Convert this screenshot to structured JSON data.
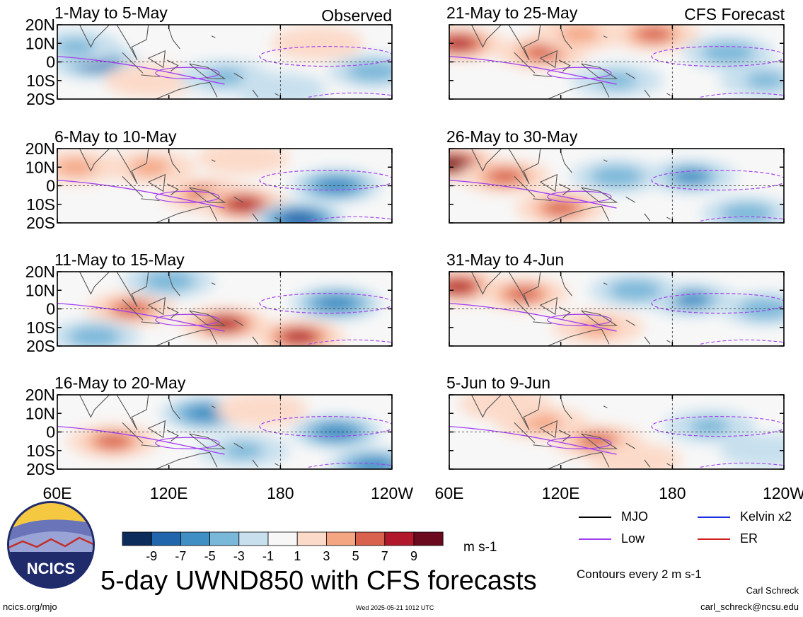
{
  "title": "5-day UWND850 with CFS forecasts",
  "units": "m s-1",
  "contours_note": "Contours every 2 m s-1",
  "author": "Carl Schreck",
  "email": "carl_schreck@ncsu.edu",
  "website": "ncics.org/mjo",
  "timestamp": "Wed 2025-05-21 1012 UTC",
  "logo_text": "NCICS",
  "header_left": "Observed",
  "header_right": "CFS Forecast",
  "lat_labels": [
    "20N",
    "10N",
    "0",
    "10S",
    "20S"
  ],
  "lon_labels": [
    "60E",
    "120E",
    "180",
    "120W"
  ],
  "legend": [
    {
      "label": "MJO",
      "color": "#000000"
    },
    {
      "label": "Kelvin x2",
      "color": "#1a2be0"
    },
    {
      "label": "Low",
      "color": "#a23ff0"
    },
    {
      "label": "ER",
      "color": "#d11f1f"
    }
  ],
  "chart_data": {
    "type": "heatmap",
    "variable": "UWND850",
    "colorbar": {
      "ticks": [
        "-9",
        "-7",
        "-5",
        "-3",
        "-1",
        "1",
        "3",
        "5",
        "7",
        "9"
      ],
      "colors": [
        "#0c2c5c",
        "#2166ac",
        "#3f8fc4",
        "#7ab8d9",
        "#c8e0ee",
        "#f7f7f7",
        "#fcdac9",
        "#f4a582",
        "#d8624e",
        "#b2182b",
        "#6b0a1f"
      ]
    },
    "panels": [
      {
        "label": "1-May to 5-May",
        "source": "Observed",
        "blobs": [
          {
            "lon": 80,
            "lat": 0,
            "v": -8
          },
          {
            "lon": 70,
            "lat": 8,
            "v": -4
          },
          {
            "lon": 110,
            "lat": -10,
            "v": 3
          },
          {
            "lon": 150,
            "lat": -8,
            "v": -4
          },
          {
            "lon": 200,
            "lat": 10,
            "v": 2
          },
          {
            "lon": 230,
            "lat": -5,
            "v": -3
          },
          {
            "lon": 180,
            "lat": -15,
            "v": -2
          }
        ]
      },
      {
        "label": "6-May to 10-May",
        "source": "Observed",
        "blobs": [
          {
            "lon": 140,
            "lat": -5,
            "v": 7
          },
          {
            "lon": 160,
            "lat": -10,
            "v": 8
          },
          {
            "lon": 110,
            "lat": 10,
            "v": 4
          },
          {
            "lon": 70,
            "lat": 10,
            "v": 4
          },
          {
            "lon": 210,
            "lat": 0,
            "v": -5
          },
          {
            "lon": 190,
            "lat": -18,
            "v": -7
          },
          {
            "lon": 160,
            "lat": 15,
            "v": 3
          }
        ]
      },
      {
        "label": "11-May to 15-May",
        "source": "Observed",
        "blobs": [
          {
            "lon": 100,
            "lat": 0,
            "v": 6
          },
          {
            "lon": 150,
            "lat": -8,
            "v": 8
          },
          {
            "lon": 190,
            "lat": -15,
            "v": 9
          },
          {
            "lon": 80,
            "lat": -15,
            "v": -3
          },
          {
            "lon": 210,
            "lat": 3,
            "v": -5
          },
          {
            "lon": 120,
            "lat": 15,
            "v": -3
          }
        ]
      },
      {
        "label": "16-May to 20-May",
        "source": "Observed",
        "blobs": [
          {
            "lon": 90,
            "lat": -5,
            "v": 6
          },
          {
            "lon": 140,
            "lat": 10,
            "v": -5
          },
          {
            "lon": 160,
            "lat": -10,
            "v": -4
          },
          {
            "lon": 210,
            "lat": 0,
            "v": -5
          },
          {
            "lon": 170,
            "lat": 12,
            "v": 3
          },
          {
            "lon": 230,
            "lat": -18,
            "v": -5
          }
        ]
      },
      {
        "label": "21-May to 25-May",
        "source": "CFS Forecast",
        "blobs": [
          {
            "lon": 65,
            "lat": 10,
            "v": 9
          },
          {
            "lon": 110,
            "lat": 5,
            "v": 6
          },
          {
            "lon": 170,
            "lat": 15,
            "v": 7
          },
          {
            "lon": 150,
            "lat": -10,
            "v": -4
          },
          {
            "lon": 210,
            "lat": 5,
            "v": -3
          },
          {
            "lon": 230,
            "lat": -10,
            "v": -4
          },
          {
            "lon": 130,
            "lat": 15,
            "v": 4
          }
        ]
      },
      {
        "label": "26-May to 30-May",
        "source": "CFS Forecast",
        "blobs": [
          {
            "lon": 62,
            "lat": 12,
            "v": 10
          },
          {
            "lon": 90,
            "lat": 5,
            "v": 6
          },
          {
            "lon": 120,
            "lat": -12,
            "v": 6
          },
          {
            "lon": 190,
            "lat": 5,
            "v": -6
          },
          {
            "lon": 150,
            "lat": 5,
            "v": -3
          },
          {
            "lon": 220,
            "lat": -15,
            "v": -3
          }
        ]
      },
      {
        "label": "31-May to 4-Jun",
        "source": "CFS Forecast",
        "blobs": [
          {
            "lon": 65,
            "lat": 12,
            "v": 9
          },
          {
            "lon": 100,
            "lat": 8,
            "v": 6
          },
          {
            "lon": 140,
            "lat": -10,
            "v": 4
          },
          {
            "lon": 190,
            "lat": 5,
            "v": -6
          },
          {
            "lon": 160,
            "lat": 10,
            "v": -3
          },
          {
            "lon": 230,
            "lat": 0,
            "v": -3
          }
        ]
      },
      {
        "label": "5-Jun to 9-Jun",
        "source": "CFS Forecast",
        "blobs": [
          {
            "lon": 140,
            "lat": -5,
            "v": 7
          },
          {
            "lon": 110,
            "lat": 5,
            "v": 5
          },
          {
            "lon": 200,
            "lat": 3,
            "v": -4
          },
          {
            "lon": 160,
            "lat": -15,
            "v": 3
          },
          {
            "lon": 90,
            "lat": 15,
            "v": 3
          },
          {
            "lon": 230,
            "lat": -10,
            "v": -2
          }
        ]
      }
    ]
  }
}
